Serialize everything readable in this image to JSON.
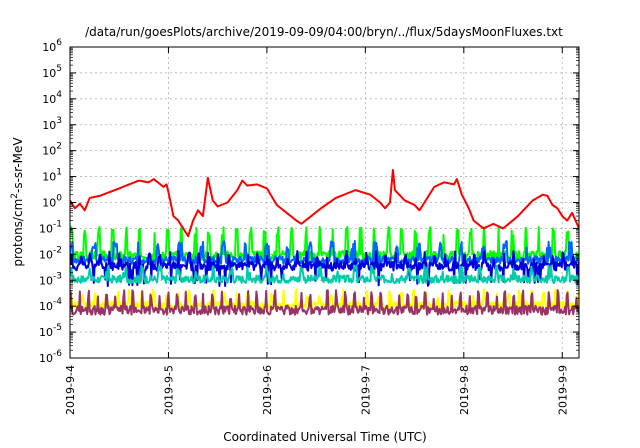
{
  "chart_data": {
    "type": "line",
    "title": "/data/run/goesPlots/archive/2019-09-09/04:00/bryn/../flux/5daysMoonFluxes.txt",
    "xlabel": "Coordinated Universal Time (UTC)",
    "ylabel_parts": [
      "protons/cm",
      "2",
      "-s-sr-MeV"
    ],
    "ylabel_text": "protons/cm2-s-sr-MeV",
    "y_scale": "log",
    "ylim": [
      1e-06,
      1000000.0
    ],
    "xlim": [
      0,
      5.17
    ],
    "grid": true,
    "x_ticks": [
      {
        "x": 0,
        "label": "2019-9-4"
      },
      {
        "x": 1,
        "label": "2019-9-5"
      },
      {
        "x": 2,
        "label": "2019-9-6"
      },
      {
        "x": 3,
        "label": "2019-9-7"
      },
      {
        "x": 4,
        "label": "2019-9-8"
      },
      {
        "x": 5,
        "label": "2019-9-9"
      }
    ],
    "y_ticks": [
      {
        "v": 1e-06,
        "base": "10",
        "exp": "-6"
      },
      {
        "v": 1e-05,
        "base": "10",
        "exp": "-5"
      },
      {
        "v": 0.0001,
        "base": "10",
        "exp": "-4"
      },
      {
        "v": 0.001,
        "base": "10",
        "exp": "-3"
      },
      {
        "v": 0.01,
        "base": "10",
        "exp": "-2"
      },
      {
        "v": 0.1,
        "base": "10",
        "exp": "-1"
      },
      {
        "v": 1.0,
        "base": "10",
        "exp": "0"
      },
      {
        "v": 10.0,
        "base": "10",
        "exp": "1"
      },
      {
        "v": 100.0,
        "base": "10",
        "exp": "2"
      },
      {
        "v": 1000.0,
        "base": "10",
        "exp": "3"
      },
      {
        "v": 10000.0,
        "base": "10",
        "exp": "4"
      },
      {
        "v": 100000.0,
        "base": "10",
        "exp": "5"
      },
      {
        "v": 1000000.0,
        "base": "10",
        "exp": "6"
      }
    ],
    "series": [
      {
        "color": "#ff0000",
        "stroke_width": 2,
        "points": [
          [
            0,
            1.2
          ],
          [
            0.05,
            0.6
          ],
          [
            0.1,
            0.9
          ],
          [
            0.15,
            0.5
          ],
          [
            0.2,
            1.5
          ],
          [
            0.3,
            1.8
          ],
          [
            0.4,
            2.5
          ],
          [
            0.5,
            3.5
          ],
          [
            0.6,
            5
          ],
          [
            0.7,
            7
          ],
          [
            0.8,
            6
          ],
          [
            0.85,
            8
          ],
          [
            0.95,
            4
          ],
          [
            0.98,
            5
          ],
          [
            1.0,
            2.5
          ],
          [
            1.05,
            0.3
          ],
          [
            1.1,
            0.2
          ],
          [
            1.15,
            0.1
          ],
          [
            1.2,
            0.05
          ],
          [
            1.25,
            0.2
          ],
          [
            1.3,
            0.5
          ],
          [
            1.35,
            0.3
          ],
          [
            1.4,
            9
          ],
          [
            1.45,
            1.2
          ],
          [
            1.5,
            0.7
          ],
          [
            1.6,
            1.0
          ],
          [
            1.7,
            3
          ],
          [
            1.75,
            7
          ],
          [
            1.8,
            4.5
          ],
          [
            1.9,
            5
          ],
          [
            2.0,
            3.5
          ],
          [
            2.1,
            0.8
          ],
          [
            2.2,
            0.4
          ],
          [
            2.3,
            0.2
          ],
          [
            2.35,
            0.15
          ],
          [
            2.45,
            0.3
          ],
          [
            2.55,
            0.6
          ],
          [
            2.7,
            1.5
          ],
          [
            2.9,
            3
          ],
          [
            3.05,
            2
          ],
          [
            3.15,
            1.0
          ],
          [
            3.2,
            0.6
          ],
          [
            3.25,
            1.0
          ],
          [
            3.28,
            18
          ],
          [
            3.3,
            3
          ],
          [
            3.4,
            1.2
          ],
          [
            3.5,
            0.8
          ],
          [
            3.55,
            0.5
          ],
          [
            3.6,
            1
          ],
          [
            3.7,
            4
          ],
          [
            3.8,
            6
          ],
          [
            3.9,
            5
          ],
          [
            3.93,
            8
          ],
          [
            3.98,
            2
          ],
          [
            4.05,
            0.6
          ],
          [
            4.1,
            0.2
          ],
          [
            4.2,
            0.1
          ],
          [
            4.3,
            0.15
          ],
          [
            4.4,
            0.1
          ],
          [
            4.55,
            0.3
          ],
          [
            4.7,
            1.2
          ],
          [
            4.8,
            2
          ],
          [
            4.85,
            1.8
          ],
          [
            4.9,
            0.8
          ],
          [
            4.95,
            0.6
          ],
          [
            5.0,
            0.3
          ],
          [
            5.05,
            0.2
          ],
          [
            5.1,
            0.4
          ],
          [
            5.15,
            0.15
          ],
          [
            5.17,
            0.1
          ]
        ]
      },
      {
        "color": "#00ff00",
        "stroke_width": 2,
        "gen": {
          "base": 0.009,
          "peak": 0.08,
          "period": 0.14,
          "jitter": 0.35,
          "seed": 3
        }
      },
      {
        "color": "#0066ff",
        "stroke_width": 2,
        "gen": {
          "base": 0.006,
          "peak": 0.022,
          "period": 0.22,
          "jitter": 0.3,
          "seed": 7
        }
      },
      {
        "color": "#0000dd",
        "stroke_width": 2,
        "gen": {
          "base": 0.0035,
          "peak": 0.009,
          "period": 0.1,
          "jitter": 0.35,
          "seed": 11,
          "dips": 0.0008
        }
      },
      {
        "color": "#00ccaa",
        "stroke_width": 2,
        "gen": {
          "base": 0.0011,
          "peak": 0.0025,
          "period": 0.18,
          "jitter": 0.3,
          "seed": 17
        }
      },
      {
        "color": "#ffff00",
        "stroke_width": 2,
        "gen": {
          "base": 0.00011,
          "peak": 0.0003,
          "period": 0.12,
          "jitter": 0.3,
          "seed": 23
        }
      },
      {
        "color": "#993366",
        "stroke_width": 2,
        "gen": {
          "base": 7e-05,
          "peak": 0.00028,
          "period": 0.09,
          "jitter": 0.35,
          "seed": 29
        }
      }
    ]
  }
}
